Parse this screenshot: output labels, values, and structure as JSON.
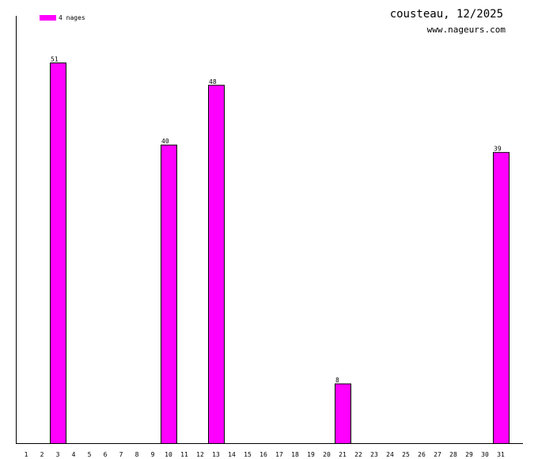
{
  "chart_data": {
    "type": "bar",
    "title": "cousteau, 12/2025",
    "subtitle": "www.nageurs.com",
    "legend": [
      {
        "label": "4 nages",
        "color": "#ff00ff"
      }
    ],
    "categories": [
      "1",
      "2",
      "3",
      "4",
      "5",
      "6",
      "7",
      "8",
      "9",
      "10",
      "11",
      "12",
      "13",
      "14",
      "15",
      "16",
      "17",
      "18",
      "19",
      "20",
      "21",
      "22",
      "23",
      "24",
      "25",
      "26",
      "27",
      "28",
      "29",
      "30",
      "31"
    ],
    "series": [
      {
        "name": "4 nages",
        "color": "#ff00ff",
        "values": [
          0,
          0,
          51,
          0,
          0,
          0,
          0,
          0,
          0,
          40,
          0,
          0,
          48,
          0,
          0,
          0,
          0,
          0,
          0,
          0,
          8,
          0,
          0,
          0,
          0,
          0,
          0,
          0,
          0,
          0,
          39
        ]
      }
    ],
    "ylim": [
      0,
      55
    ],
    "xlabel": "",
    "ylabel": "",
    "grid": false,
    "legend_position": "top-left"
  }
}
